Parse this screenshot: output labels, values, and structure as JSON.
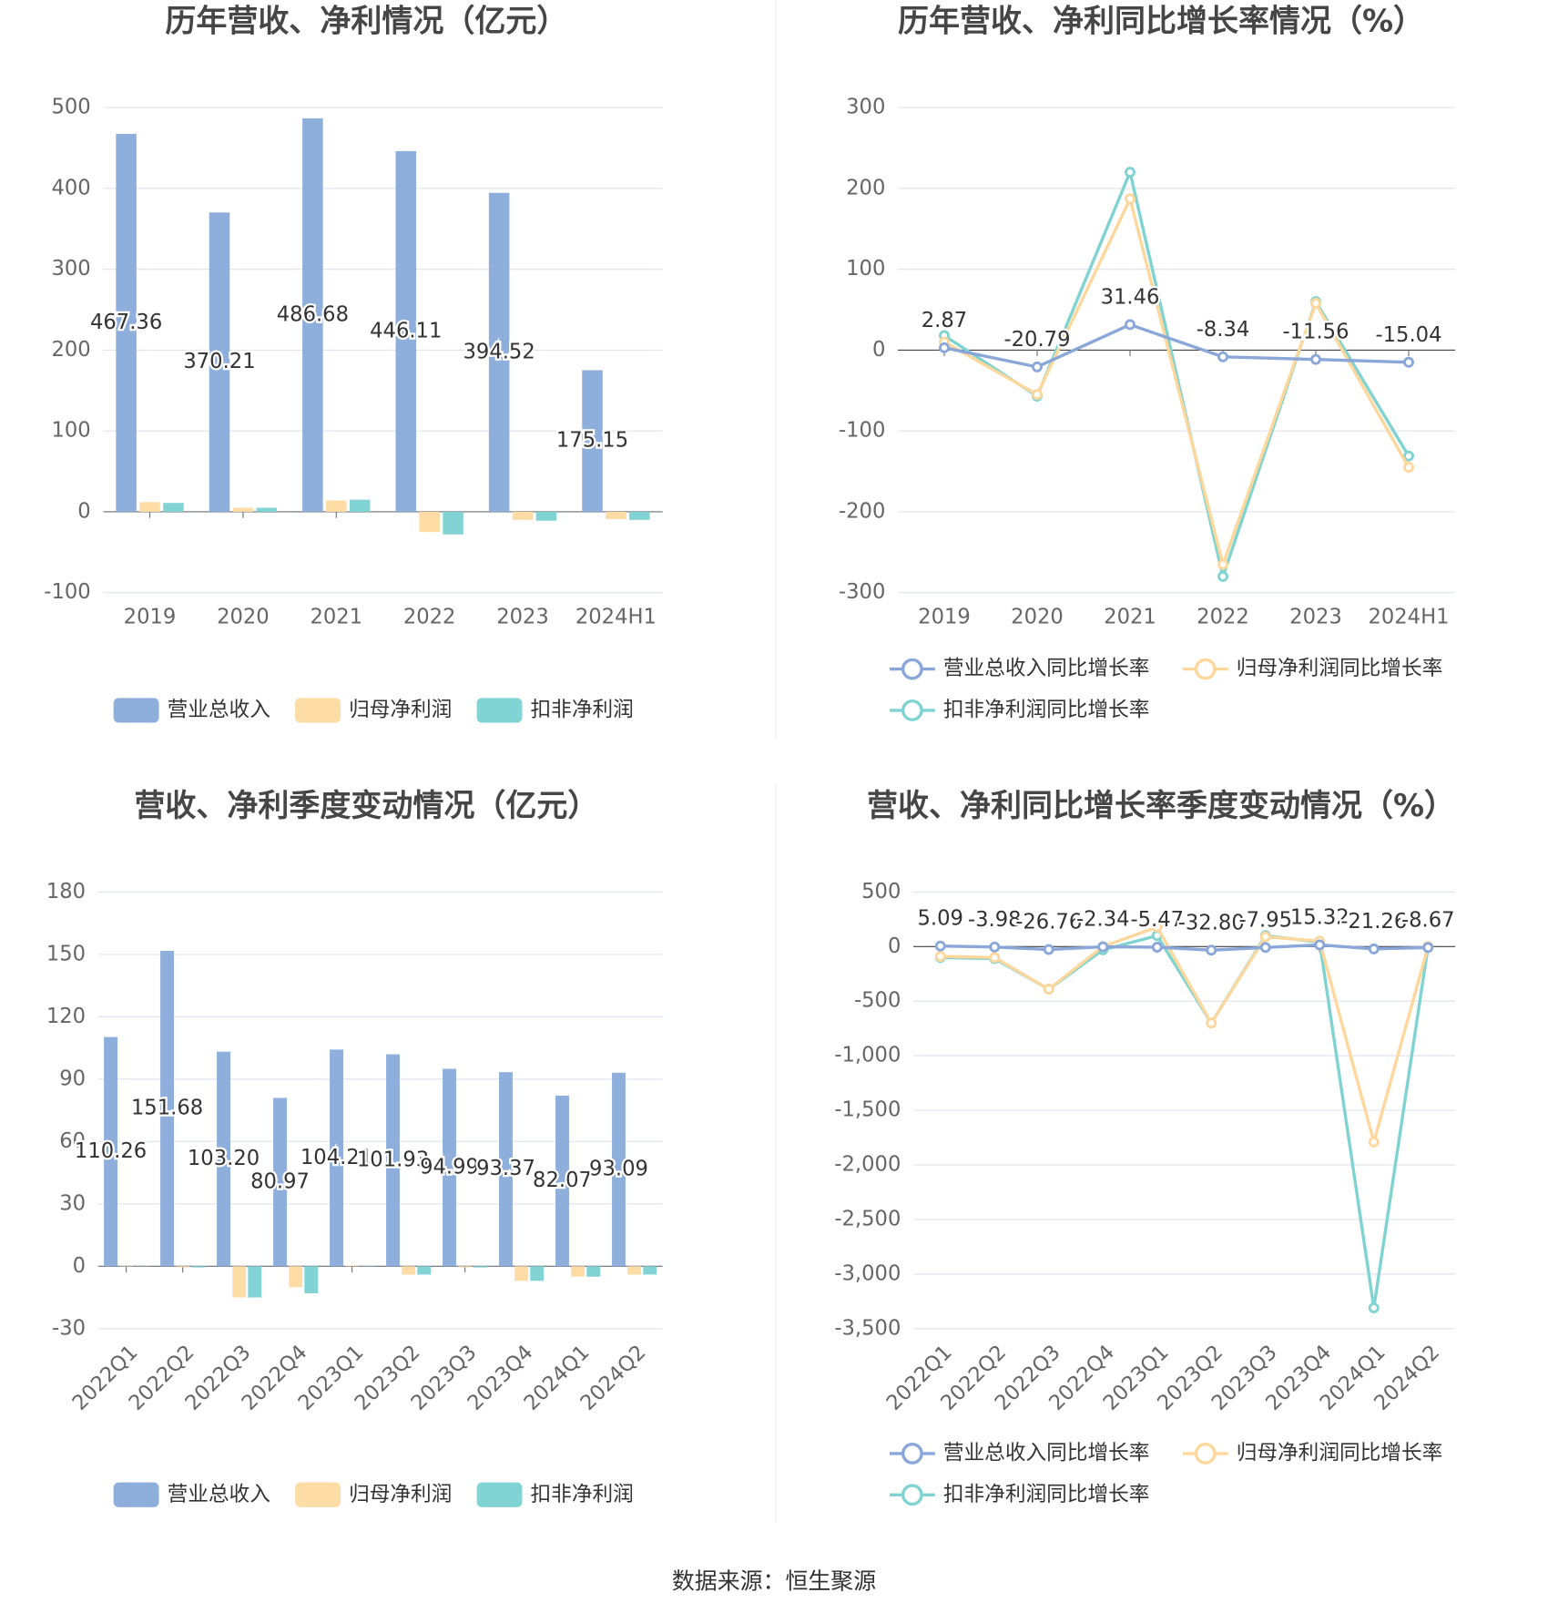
{
  "chart_data": [
    {
      "type": "bar",
      "title": "历年营收、净利情况（亿元）",
      "categories": [
        "2019",
        "2020",
        "2021",
        "2022",
        "2023",
        "2024H1"
      ],
      "series": [
        {
          "name": "营业总收入",
          "color": "#8eaedb",
          "values": [
            467.36,
            370.21,
            486.68,
            446.11,
            394.52,
            175.15
          ],
          "value_labels": [
            "467.36",
            "370.21",
            "486.68",
            "446.11",
            "394.52",
            "175.15"
          ]
        },
        {
          "name": "归母净利润",
          "color": "#fddca5",
          "values": [
            12,
            5,
            14,
            -25,
            -10,
            -9
          ]
        },
        {
          "name": "扣非净利润",
          "color": "#82d3d3",
          "values": [
            11,
            5,
            15,
            -28,
            -11,
            -10
          ]
        }
      ],
      "ylim": [
        -100,
        500
      ],
      "yticks": [
        -100,
        0,
        100,
        200,
        300,
        400,
        500
      ],
      "grid": true
    },
    {
      "type": "line",
      "title": "历年营收、净利同比增长率情况（%）",
      "categories": [
        "2019",
        "2020",
        "2021",
        "2022",
        "2023",
        "2024H1"
      ],
      "series": [
        {
          "name": "营业总收入同比增长率",
          "color": "#8aa7d9",
          "values": [
            2.87,
            -20.79,
            31.46,
            -8.34,
            -11.56,
            -15.04
          ],
          "value_labels": [
            "2.87",
            "-20.79",
            "31.46",
            "-8.34",
            "-11.56",
            "-15.04"
          ]
        },
        {
          "name": "归母净利润同比增长率",
          "color": "#fdd79b",
          "values": [
            10,
            -55,
            187,
            -265,
            58,
            -145
          ]
        },
        {
          "name": "扣非净利润同比增长率",
          "color": "#7fd3d0",
          "values": [
            18,
            -57,
            220,
            -280,
            60,
            -131
          ]
        }
      ],
      "ylim": [
        -300,
        300
      ],
      "yticks": [
        -300,
        -200,
        -100,
        0,
        100,
        200,
        300
      ],
      "grid": true
    },
    {
      "type": "bar",
      "title": "营收、净利季度变动情况（亿元）",
      "categories": [
        "2022Q1",
        "2022Q2",
        "2022Q3",
        "2022Q4",
        "2023Q1",
        "2023Q2",
        "2023Q3",
        "2023Q4",
        "2024Q1",
        "2024Q2"
      ],
      "series": [
        {
          "name": "营业总收入",
          "color": "#8eaedb",
          "values": [
            110.26,
            151.68,
            103.2,
            80.97,
            104.21,
            101.93,
            94.99,
            93.37,
            82.07,
            93.09
          ],
          "value_labels": [
            "110.26",
            "151.68",
            "103.20",
            "80.97",
            "104.21",
            "101.93",
            "94.99",
            "93.37",
            "82.07",
            "93.09"
          ]
        },
        {
          "name": "归母净利润",
          "color": "#fddca5",
          "values": [
            0.2,
            -0.5,
            -15,
            -10,
            0.3,
            -4,
            -0.5,
            -7,
            -5,
            -4
          ]
        },
        {
          "name": "扣非净利润",
          "color": "#82d3d3",
          "values": [
            0.1,
            -0.6,
            -15,
            -13,
            0.2,
            -4,
            -0.6,
            -7,
            -5,
            -4
          ]
        }
      ],
      "ylim": [
        -30,
        180
      ],
      "yticks": [
        -30,
        0,
        30,
        60,
        90,
        120,
        150,
        180
      ],
      "grid": true
    },
    {
      "type": "line",
      "title": "营收、净利同比增长率季度变动情况（%）",
      "categories": [
        "2022Q1",
        "2022Q2",
        "2022Q3",
        "2022Q4",
        "2023Q1",
        "2023Q2",
        "2023Q3",
        "2023Q4",
        "2024Q1",
        "2024Q2"
      ],
      "series": [
        {
          "name": "营业总收入同比增长率",
          "color": "#8aa7d9",
          "values": [
            5.09,
            -3.98,
            -26.76,
            -2.34,
            -5.47,
            -32.8,
            -7.95,
            15.32,
            -21.26,
            -8.67
          ],
          "value_labels": [
            "5.09",
            "-3.98",
            "-26.76",
            "-2.34",
            "-5.47",
            "-32.80",
            "-7.95",
            "15.32",
            "-21.26",
            "-8.67"
          ]
        },
        {
          "name": "归母净利润同比增长率",
          "color": "#fdd79b",
          "values": [
            -90,
            -100,
            -390,
            0,
            180,
            -700,
            90,
            50,
            -1790,
            0
          ]
        },
        {
          "name": "扣非净利润同比增长率",
          "color": "#7fd3d0",
          "values": [
            -100,
            -110,
            -390,
            -30,
            100,
            -700,
            100,
            40,
            -3310,
            0
          ]
        }
      ],
      "ylim": [
        -3500,
        500
      ],
      "yticks": [
        {
          "value": -3500,
          "label": "-3,500"
        },
        {
          "value": -3000,
          "label": "-3,000"
        },
        {
          "value": -2500,
          "label": "-2,500"
        },
        {
          "value": -2000,
          "label": "-2,000"
        },
        {
          "value": -1500,
          "label": "-1,500"
        },
        {
          "value": -1000,
          "label": "-1,000"
        },
        -500,
        0,
        500
      ],
      "grid": true
    }
  ],
  "source": "数据来源：恒生聚源"
}
